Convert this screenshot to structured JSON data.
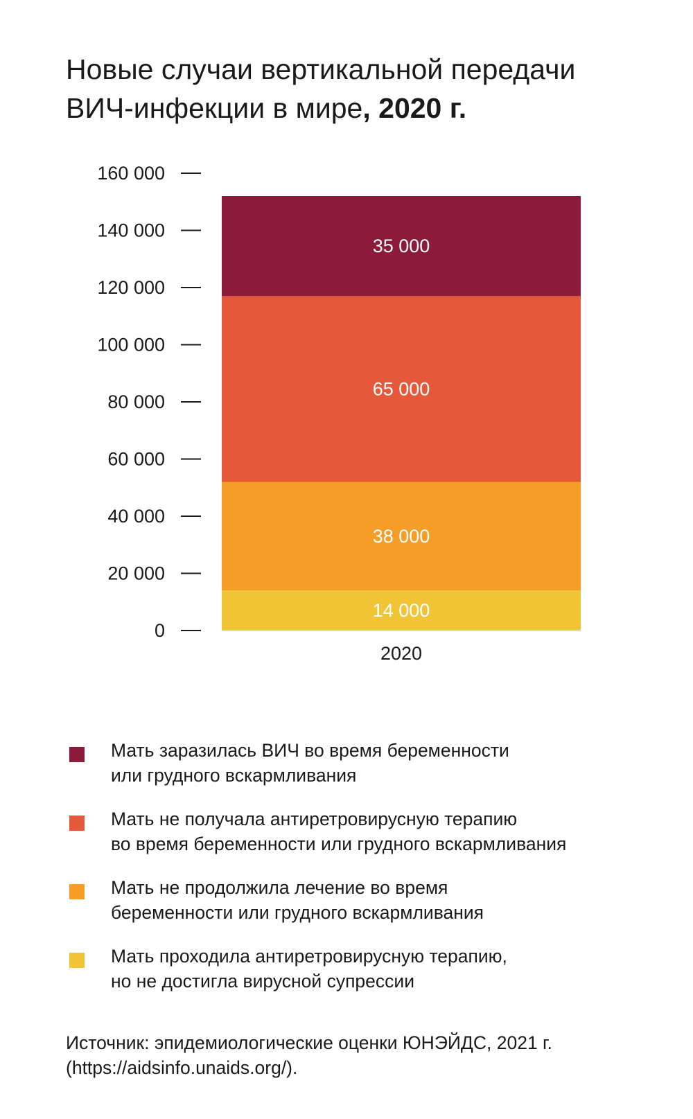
{
  "title": {
    "line1": "Новые случаи вертикальной передачи",
    "line2_regular": "ВИЧ-инфекции в мире",
    "line2_bold": ", 2020 г."
  },
  "chart_data": {
    "type": "bar",
    "stacked": true,
    "categories": [
      "2020"
    ],
    "series": [
      {
        "name": "Мать проходила антиретровирусную терапию, но не достигла вирусной супрессии",
        "values": [
          14000
        ],
        "label": "14 000",
        "color": "#f0c435"
      },
      {
        "name": "Мать не продолжила лечение во время беременности или грудного вскармливания",
        "values": [
          38000
        ],
        "label": "38 000",
        "color": "#f69d28"
      },
      {
        "name": "Мать не получала антиретровирусную терапию во время беременности или грудного вскармливания",
        "values": [
          65000
        ],
        "label": "65 000",
        "color": "#e5583a"
      },
      {
        "name": "Мать заразилась ВИЧ во время беременности или грудного вскармливания",
        "values": [
          35000
        ],
        "label": "35 000",
        "color": "#8e1a3b"
      }
    ],
    "yticks": [
      {
        "value": 0,
        "label": "0"
      },
      {
        "value": 20000,
        "label": "20 000"
      },
      {
        "value": 40000,
        "label": "40 000"
      },
      {
        "value": 60000,
        "label": "60 000"
      },
      {
        "value": 80000,
        "label": "80 000"
      },
      {
        "value": 100000,
        "label": "100 000"
      },
      {
        "value": 120000,
        "label": "120 000"
      },
      {
        "value": 140000,
        "label": "140 000"
      },
      {
        "value": 160000,
        "label": "160 000"
      }
    ],
    "ylim": [
      0,
      160000
    ],
    "grid": false,
    "legend_position": "bottom"
  },
  "legend": [
    {
      "lines": [
        "Мать заразилась ВИЧ во время беременности",
        "или грудного вскармливания"
      ],
      "color": "#8e1a3b",
      "icon": "square"
    },
    {
      "lines": [
        "Мать не получала антиретровирусную терапию",
        "во время беременности или грудного вскармливания"
      ],
      "color": "#e5583a",
      "icon": "square"
    },
    {
      "lines": [
        "Мать не продолжила лечение во время",
        "беременности или грудного вскармливания"
      ],
      "color": "#f69d28",
      "icon": "square"
    },
    {
      "lines": [
        "Мать проходила антиретровирусную терапию,",
        "но не достигла вирусной супрессии"
      ],
      "color": "#f0c435",
      "icon": "square"
    }
  ],
  "source": {
    "line1": "Источник: эпидемиологические оценки ЮНЭЙДС, 2021 г.",
    "line2": "(https://aidsinfo.unaids.org/)."
  }
}
